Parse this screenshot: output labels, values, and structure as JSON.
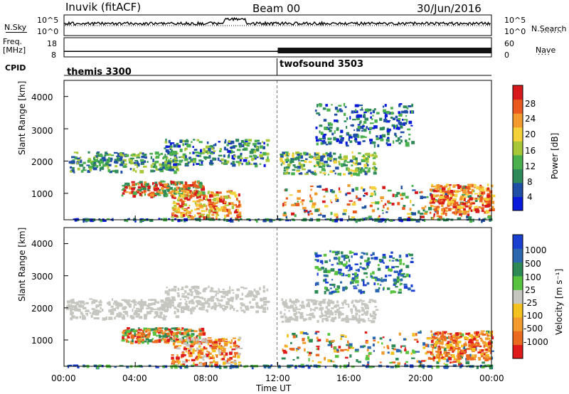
{
  "header": {
    "station": "Inuvik (fitACF)",
    "beam": "Beam 00",
    "date": "30/Jun/2016"
  },
  "left_labels": {
    "nsky": "N.Sky",
    "freq": "Freq.",
    "freq_unit": "[MHz]",
    "cpid": "CPID"
  },
  "right_labels": {
    "nsearch": "N.Search",
    "nave": "Nave"
  },
  "cpid_labels": [
    "themis 3300",
    "twofsound 3503"
  ],
  "colors": {
    "power": [
      "#0a1adb",
      "#1f4ea6",
      "#2f8a5a",
      "#49b04d",
      "#a8c83a",
      "#f5d13a",
      "#f29a2e",
      "#ea5a1e",
      "#d7191c"
    ],
    "velocity": [
      "#1b3fd1",
      "#2a67b0",
      "#2e8a55",
      "#57c33e",
      "#c6c6c0",
      "#f3c21f",
      "#f29a2e",
      "#ea6a1f",
      "#e01a1a"
    ]
  },
  "chart_data": [
    {
      "type": "line",
      "name": "N.Sky / N.Search",
      "y_tick_labels": [
        "10^5",
        "10^0"
      ],
      "y_tick_labels_right": [
        "10^5",
        "10^0"
      ],
      "x": [
        0,
        24
      ],
      "xlim": [
        0,
        24
      ]
    },
    {
      "type": "line",
      "name": "Freq / Nave",
      "y_tick_labels": [
        "18",
        "8"
      ],
      "y_tick_labels_right": [
        "60",
        "0"
      ],
      "series": [
        {
          "values": [
            {
              "x": 0,
              "y": 10.6
            },
            {
              "x": 12,
              "y": 10.6
            },
            {
              "x": 12,
              "y": 10.8
            },
            {
              "x": 24,
              "y": 10.8
            }
          ]
        }
      ],
      "xlim": [
        0,
        24
      ]
    },
    {
      "type": "heatmap",
      "title": "",
      "ylabel": "Slant Range [km]",
      "colorbar_label": "Power [dB]",
      "colorbar_ticks": [
        "28",
        "24",
        "20",
        "16",
        "12",
        "8",
        "4"
      ],
      "y_ticks": [
        "4000",
        "3000",
        "2000",
        "1000"
      ],
      "ylim": [
        180,
        4500
      ],
      "xlim": [
        0,
        24
      ]
    },
    {
      "type": "heatmap",
      "ylabel": "Slant Range [km]",
      "colorbar_label": "Velocity [m s⁻¹]",
      "colorbar_ticks": [
        "1000",
        "500",
        "100",
        "25",
        "-25",
        "-100",
        "-500",
        "-1000"
      ],
      "y_ticks": [
        "4000",
        "3000",
        "2000",
        "1000"
      ],
      "x_ticks": [
        "00:00",
        "04:00",
        "08:00",
        "12:00",
        "16:00",
        "20:00",
        "00:00"
      ],
      "xlabel": "Time UT",
      "ylim": [
        180,
        4500
      ],
      "xlim": [
        0,
        24
      ]
    }
  ]
}
